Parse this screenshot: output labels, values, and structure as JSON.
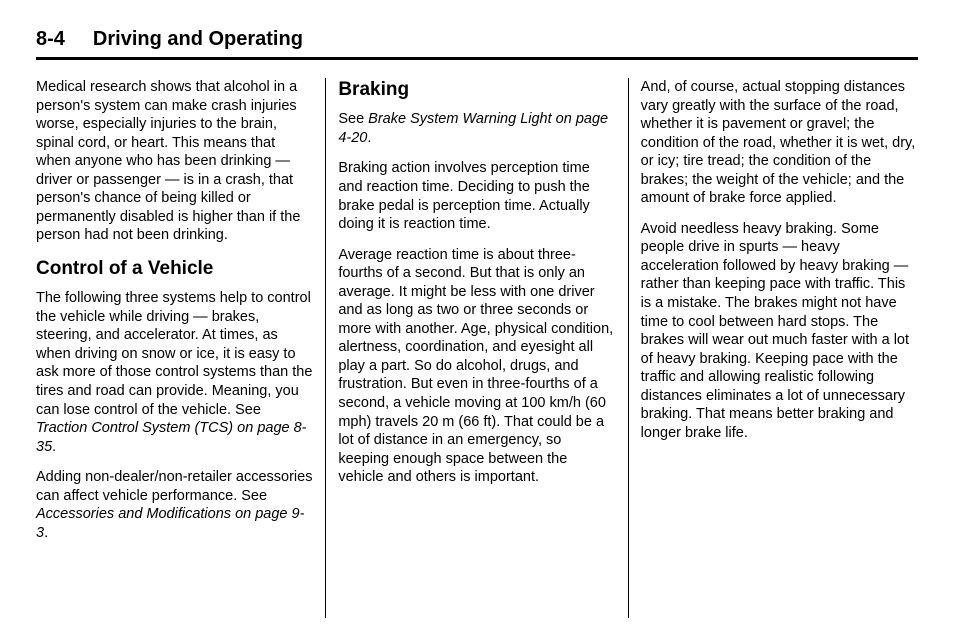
{
  "header": {
    "page_number": "8-4",
    "chapter_title": "Driving and Operating"
  },
  "col1": {
    "p1": "Medical research shows that alcohol in a person's system can make crash injuries worse, especially injuries to the brain, spinal cord, or heart. This means that when anyone who has been drinking — driver or passenger — is in a crash, that person's chance of being killed or permanently disabled is higher than if the person had not been drinking.",
    "h1": "Control of a Vehicle",
    "p2a": "The following three systems help to control the vehicle while driving — brakes, steering, and accelerator. At times, as when driving on snow or ice, it is easy to ask more of those control systems than the tires and road can provide. Meaning, you can lose control of the vehicle. See ",
    "p2b": "Traction Control System (TCS) on page 8-35",
    "p2c": ".",
    "p3a": "Adding non-dealer/non-retailer accessories can affect vehicle performance. See ",
    "p3b": "Accessories and Modifications on page 9-3",
    "p3c": "."
  },
  "col2": {
    "h1": "Braking",
    "p1a": "See ",
    "p1b": "Brake System Warning Light on page 4-20",
    "p1c": ".",
    "p2": "Braking action involves perception time and reaction time. Deciding to push the brake pedal is perception time. Actually doing it is reaction time.",
    "p3": "Average reaction time is about three-fourths of a second. But that is only an average. It might be less with one driver and as long as two or three seconds or more with another. Age, physical condition, alertness, coordination, and eyesight all play a part. So do alcohol, drugs, and frustration. But even in three-fourths of a second, a vehicle moving at 100 km/h (60 mph) travels 20 m (66 ft). That could be a lot of distance in an emergency, so keeping enough space between the vehicle and others is important."
  },
  "col3": {
    "p1": "And, of course, actual stopping distances vary greatly with the surface of the road, whether it is pavement or gravel; the condition of the road, whether it is wet, dry, or icy; tire tread; the condition of the brakes; the weight of the vehicle; and the amount of brake force applied.",
    "p2": "Avoid needless heavy braking. Some people drive in spurts — heavy acceleration followed by heavy braking — rather than keeping pace with traffic. This is a mistake. The brakes might not have time to cool between hard stops. The brakes will wear out much faster with a lot of heavy braking. Keeping pace with the traffic and allowing realistic following distances eliminates a lot of unnecessary braking. That means better braking and longer brake life."
  }
}
